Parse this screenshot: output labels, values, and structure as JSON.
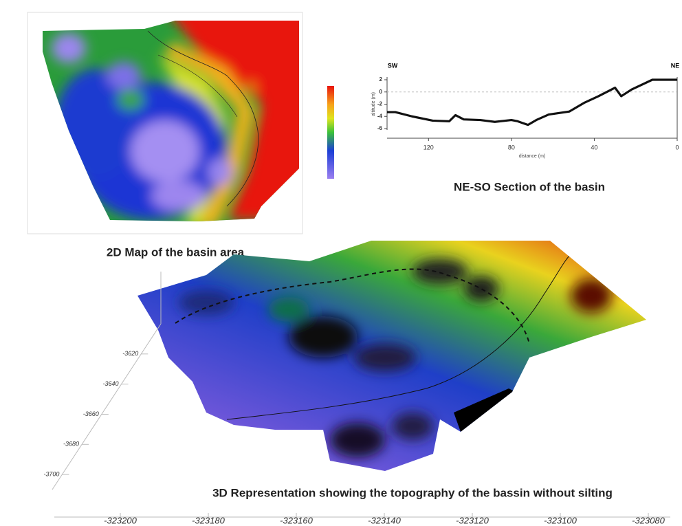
{
  "captions": {
    "map": "2D Map of the basin area",
    "section": "NE-SO Section of the basin",
    "surface": "3D Representation showing the topography of the bassin without silting"
  },
  "chart_data": [
    {
      "type": "line",
      "left_label": "SW",
      "right_label": "NE",
      "xlabel": "distance (m)",
      "ylabel": "altitude (m)",
      "color": "#111111",
      "x": [
        140,
        136,
        128,
        118,
        110,
        107,
        103,
        95,
        88,
        80,
        77,
        72,
        68,
        62,
        52,
        45,
        38,
        30,
        27,
        22,
        12,
        0
      ],
      "values": [
        -3.3,
        -3.3,
        -4,
        -4.7,
        -4.8,
        -3.8,
        -4.5,
        -4.6,
        -4.9,
        -4.6,
        -4.8,
        -5.4,
        -4.6,
        -3.7,
        -3.2,
        -1.8,
        -0.7,
        0.7,
        -0.7,
        0.4,
        2,
        2
      ],
      "xlim": [
        140,
        0
      ],
      "xticks": [
        120,
        80,
        40,
        0
      ],
      "ylim": [
        -6,
        2
      ],
      "yticks": [
        2,
        0,
        -2,
        -4,
        -6
      ]
    },
    {
      "type": "surface3d",
      "xlim": [
        -323215,
        -323075
      ],
      "xticks": [
        -323200,
        -323180,
        -323160,
        -323140,
        -323120,
        -323100,
        -323080
      ],
      "ylim": [
        -3600,
        -3710
      ],
      "yticks": [
        -3620,
        -3640,
        -3660,
        -3680,
        -3700
      ]
    }
  ]
}
